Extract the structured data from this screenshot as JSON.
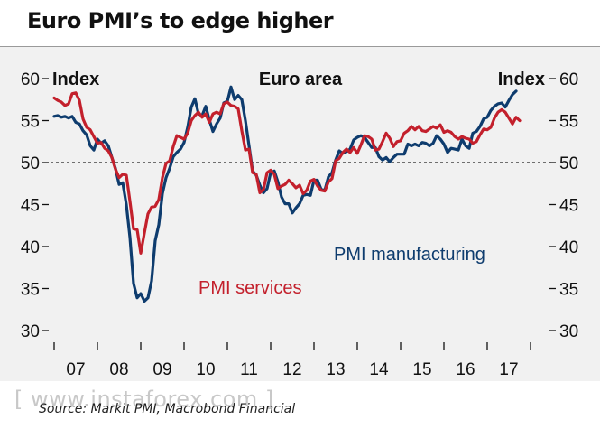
{
  "title": "Euro PMI’s to edge higher",
  "source": "Source: Markit PMI, Macrobond Financial",
  "watermark": "[ www.instaforex.com ]",
  "colors": {
    "manufacturing": "#0e3c6e",
    "services": "#c3202c",
    "background": "#f1f1f1"
  },
  "chart_data": {
    "type": "line",
    "title": "Euro area",
    "ylabel_left": "Index",
    "ylabel_right": "Index",
    "ylim": [
      30,
      60
    ],
    "yticks": [
      30,
      35,
      40,
      45,
      50,
      55,
      60
    ],
    "reference_line": 50,
    "x_start": 2007.0,
    "x_step": 0.08333,
    "xtick_labels": [
      "07",
      "08",
      "09",
      "10",
      "11",
      "12",
      "13",
      "14",
      "15",
      "16",
      "17"
    ],
    "grid": false,
    "series": [
      {
        "name": "PMI manufacturing",
        "values": [
          55.5,
          55.6,
          55.4,
          55.5,
          55.3,
          55.5,
          54.8,
          54.6,
          53.8,
          53.3,
          52.0,
          51.5,
          52.8,
          52.3,
          52.6,
          52.0,
          50.6,
          49.3,
          47.4,
          47.6,
          45.0,
          41.1,
          35.6,
          33.9,
          34.4,
          33.5,
          33.9,
          35.9,
          40.7,
          42.6,
          46.3,
          48.2,
          49.3,
          50.7,
          51.2,
          51.6,
          52.4,
          54.2,
          56.6,
          57.6,
          55.8,
          55.6,
          56.7,
          55.1,
          53.7,
          54.6,
          55.3,
          57.1,
          57.3,
          59.0,
          57.5,
          58.0,
          57.5,
          55.0,
          52.0,
          49.0,
          48.5,
          47.3,
          46.4,
          46.9,
          48.8,
          49.0,
          47.7,
          45.9,
          45.1,
          45.1,
          44.0,
          44.6,
          45.1,
          46.1,
          46.2,
          46.1,
          47.9,
          47.9,
          46.8,
          46.7,
          48.3,
          48.8,
          50.3,
          51.4,
          51.1,
          51.3,
          51.6,
          52.7,
          53.0,
          53.2,
          53.0,
          52.4,
          51.8,
          51.8,
          50.7,
          50.3,
          50.6,
          50.1,
          50.6,
          51.0,
          51.0,
          51.0,
          52.2,
          52.0,
          52.2,
          52.0,
          52.4,
          52.3,
          52.0,
          52.3,
          53.2,
          52.8,
          52.2,
          51.2,
          51.7,
          51.6,
          51.5,
          52.8,
          52.0,
          51.7,
          53.5,
          53.7,
          54.3,
          55.2,
          55.4,
          56.2,
          56.7,
          57.0,
          57.1,
          56.6,
          57.4,
          58.1,
          58.5
        ]
      },
      {
        "name": "PMI services",
        "values": [
          57.7,
          57.4,
          57.2,
          56.8,
          57.0,
          58.2,
          58.3,
          57.4,
          55.2,
          54.2,
          53.9,
          53.1,
          52.3,
          52.4,
          51.7,
          51.4,
          50.6,
          49.2,
          48.2,
          48.6,
          48.5,
          45.4,
          42.1,
          42.0,
          39.2,
          41.6,
          43.9,
          44.7,
          44.8,
          45.6,
          48.2,
          49.9,
          50.2,
          51.9,
          53.2,
          53.0,
          52.8,
          53.5,
          55.0,
          55.6,
          56.0,
          55.4,
          55.8,
          54.8,
          55.8,
          56.0,
          55.8,
          57.0,
          57.2,
          56.8,
          56.7,
          56.4,
          53.8,
          51.5,
          51.6,
          48.8,
          48.6,
          46.4,
          46.8,
          48.8,
          49.1,
          48.6,
          46.9,
          47.2,
          47.4,
          47.9,
          47.5,
          47.0,
          47.3,
          46.3,
          46.7,
          47.8,
          48.0,
          47.2,
          46.7,
          46.6,
          47.7,
          48.1,
          50.2,
          50.5,
          51.2,
          51.6,
          51.2,
          51.8,
          51.1,
          52.1,
          53.2,
          53.1,
          52.8,
          51.5,
          51.6,
          52.5,
          53.5,
          52.9,
          51.9,
          52.5,
          52.6,
          53.5,
          53.8,
          54.3,
          53.9,
          54.3,
          53.8,
          53.7,
          54.0,
          54.3,
          54.1,
          54.5,
          53.6,
          53.8,
          53.6,
          53.1,
          52.8,
          53.1,
          52.9,
          52.8,
          52.3,
          52.5,
          53.3,
          54.0,
          53.9,
          54.2,
          55.3,
          56.0,
          56.3,
          56.0,
          55.3,
          54.6,
          55.4,
          55.0
        ]
      }
    ]
  }
}
